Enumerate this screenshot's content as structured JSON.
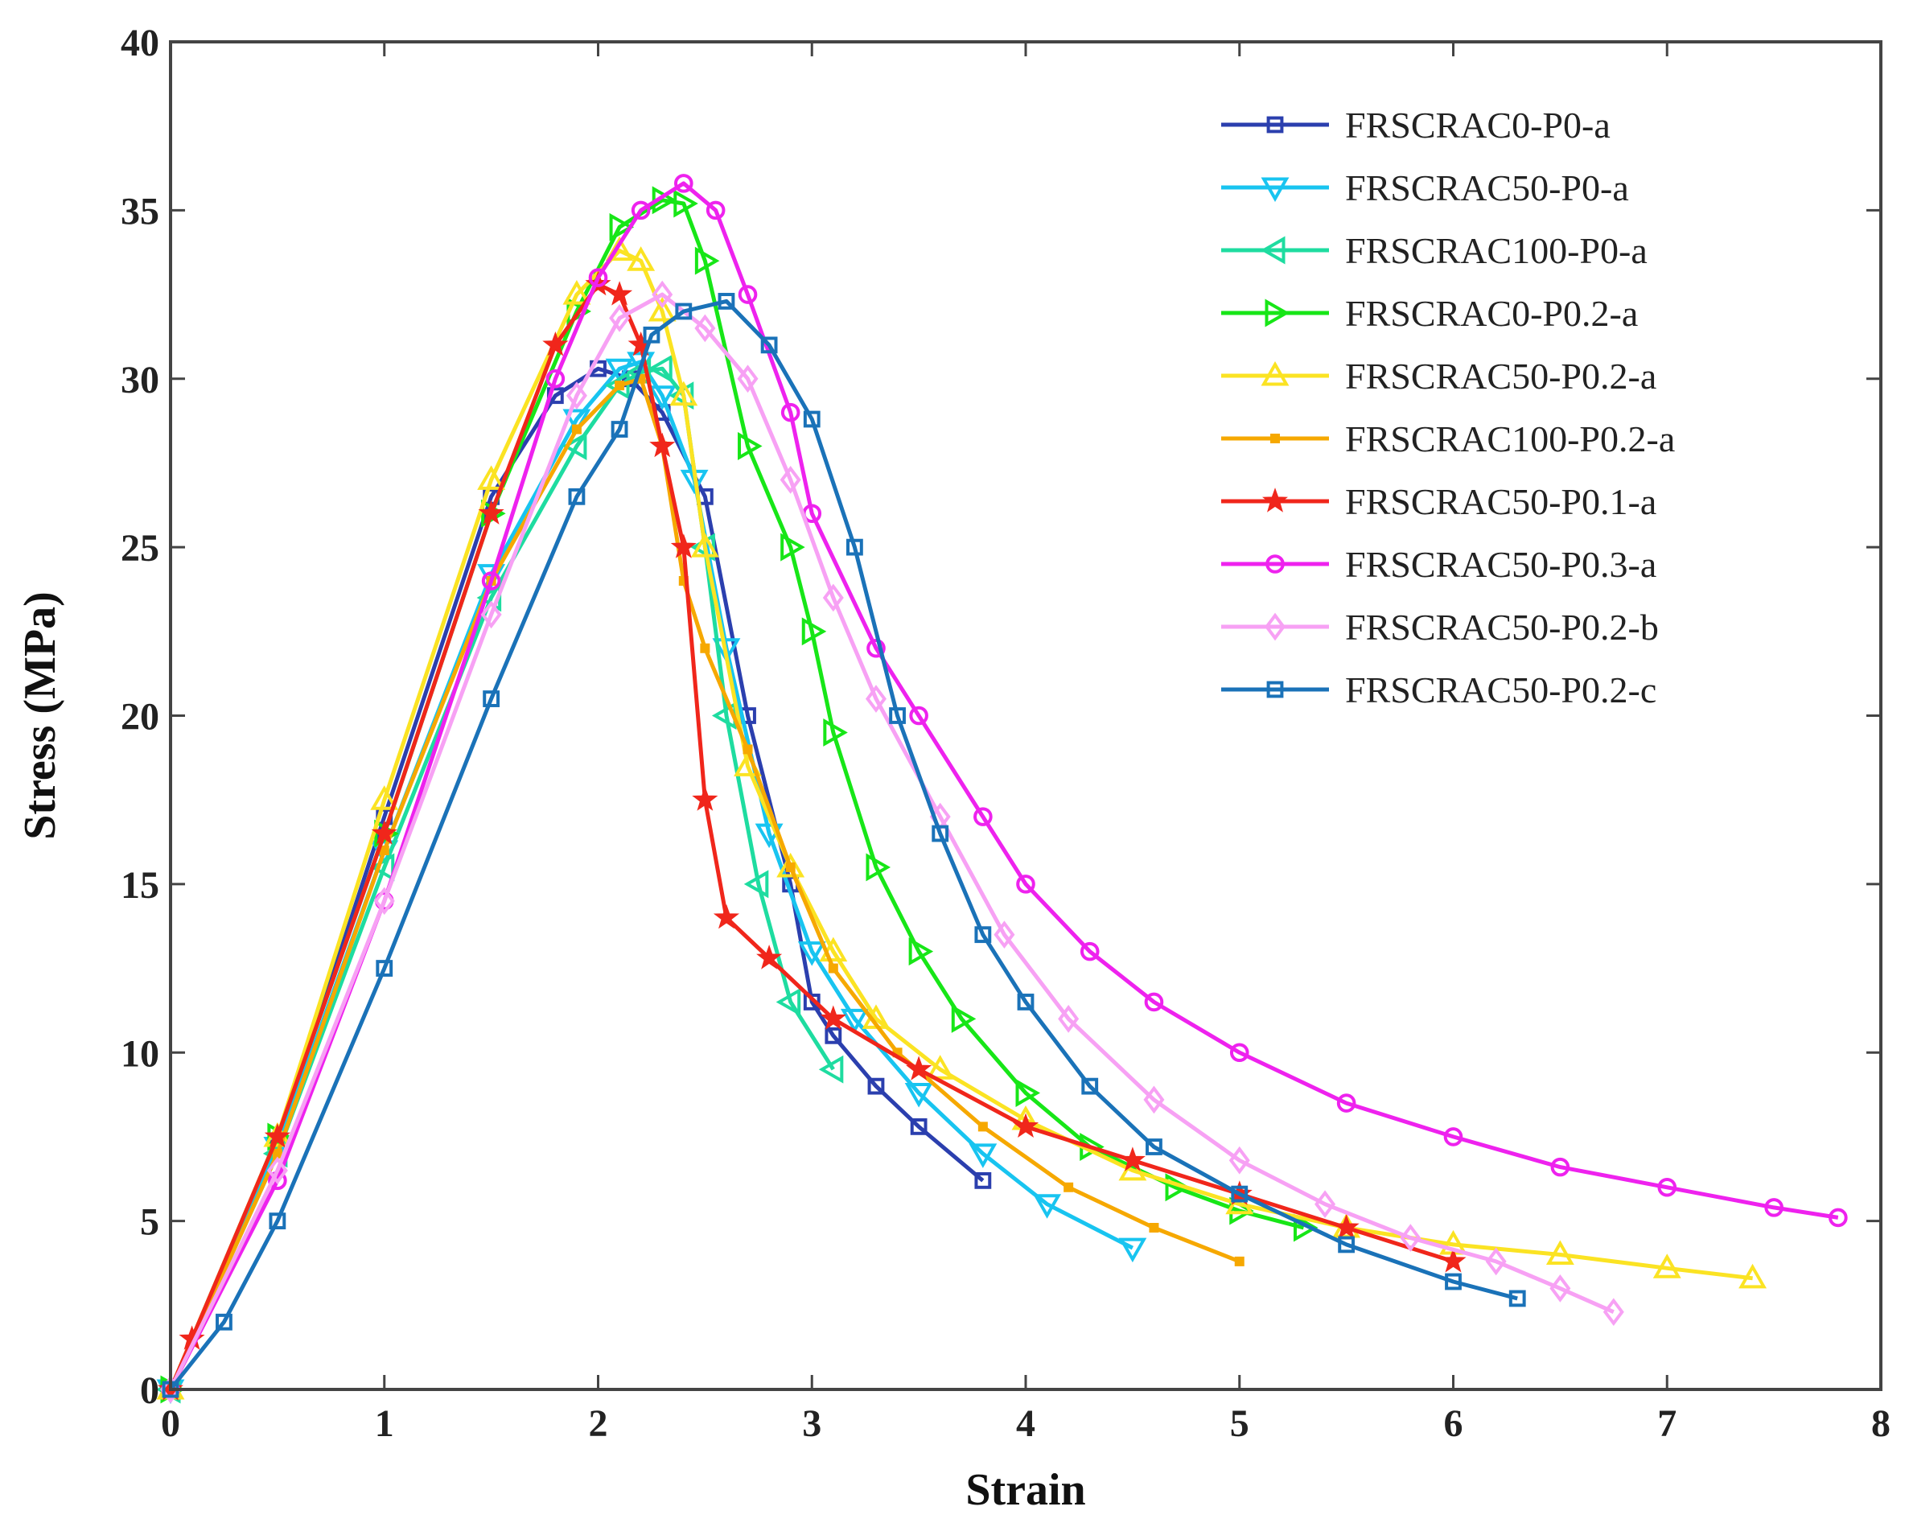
{
  "chart_data": {
    "type": "line",
    "title": "",
    "xlabel": "Strain",
    "ylabel": "Stress (MPa)",
    "xlim": [
      0,
      8
    ],
    "ylim": [
      0,
      40
    ],
    "xticks": [
      "0",
      "1",
      "2",
      "3",
      "4",
      "5",
      "6",
      "7",
      "8"
    ],
    "yticks": [
      "0",
      "5",
      "10",
      "15",
      "20",
      "25",
      "30",
      "35",
      "40"
    ],
    "grid": false,
    "legend_position": "top-right",
    "series": [
      {
        "name": "FRSCRAC0-P0-a",
        "color": "#2b3fae",
        "marker": "square",
        "x": [
          0,
          0.5,
          1.0,
          1.5,
          1.8,
          2.0,
          2.15,
          2.3,
          2.5,
          2.7,
          2.9,
          3.0,
          3.1,
          3.3,
          3.5,
          3.8
        ],
        "y": [
          0,
          7.3,
          17.0,
          26.5,
          29.5,
          30.3,
          30.0,
          29.0,
          26.5,
          20.0,
          15.0,
          11.5,
          10.5,
          9.0,
          7.8,
          6.2
        ]
      },
      {
        "name": "FRSCRAC50-P0-a",
        "color": "#18c4f0",
        "marker": "triangle-down",
        "x": [
          0,
          0.5,
          1.0,
          1.5,
          1.9,
          2.1,
          2.2,
          2.3,
          2.45,
          2.6,
          2.8,
          3.0,
          3.2,
          3.5,
          3.8,
          4.1,
          4.5
        ],
        "y": [
          0,
          7.2,
          16.0,
          24.2,
          28.8,
          30.3,
          30.5,
          29.5,
          27.0,
          22.0,
          16.5,
          13.0,
          11.0,
          8.8,
          7.0,
          5.5,
          4.2
        ]
      },
      {
        "name": "FRSCRAC100-P0-a",
        "color": "#1edca0",
        "marker": "triangle-left",
        "x": [
          0,
          0.5,
          1.0,
          1.5,
          1.9,
          2.1,
          2.2,
          2.3,
          2.4,
          2.5,
          2.6,
          2.75,
          2.9,
          3.1
        ],
        "y": [
          0,
          7.0,
          15.5,
          23.5,
          28.0,
          29.8,
          30.2,
          30.3,
          29.5,
          25.0,
          20.0,
          15.0,
          11.5,
          9.5
        ]
      },
      {
        "name": "FRSCRAC0-P0.2-a",
        "color": "#17e617",
        "marker": "triangle-right",
        "x": [
          0,
          0.5,
          1.0,
          1.5,
          1.9,
          2.1,
          2.3,
          2.4,
          2.5,
          2.7,
          2.9,
          3.0,
          3.1,
          3.3,
          3.5,
          3.7,
          4.0,
          4.3,
          4.7,
          5.0,
          5.3
        ],
        "y": [
          0,
          7.5,
          16.5,
          26.0,
          32.0,
          34.5,
          35.3,
          35.2,
          33.5,
          28.0,
          25.0,
          22.5,
          19.5,
          15.5,
          13.0,
          11.0,
          8.8,
          7.2,
          6.0,
          5.3,
          4.8
        ]
      },
      {
        "name": "FRSCRAC50-P0.2-a",
        "color": "#fbe323",
        "marker": "triangle-up",
        "x": [
          0,
          0.5,
          1.0,
          1.5,
          1.9,
          2.1,
          2.2,
          2.3,
          2.4,
          2.5,
          2.7,
          2.9,
          3.1,
          3.3,
          3.6,
          4.0,
          4.5,
          5.0,
          5.5,
          6.0,
          6.5,
          7.0,
          7.4
        ],
        "y": [
          0,
          7.5,
          17.5,
          27.0,
          32.5,
          33.8,
          33.5,
          32.0,
          29.5,
          25.0,
          18.5,
          15.5,
          13.0,
          11.0,
          9.5,
          8.0,
          6.5,
          5.5,
          4.8,
          4.3,
          4.0,
          3.6,
          3.3
        ]
      },
      {
        "name": "FRSCRAC100-P0.2-a",
        "color": "#f6a800",
        "marker": "small-square",
        "x": [
          0,
          0.5,
          1.0,
          1.5,
          1.9,
          2.1,
          2.2,
          2.3,
          2.4,
          2.5,
          2.7,
          2.9,
          3.1,
          3.4,
          3.8,
          4.2,
          4.6,
          5.0
        ],
        "y": [
          0,
          7.0,
          16.0,
          24.0,
          28.5,
          29.8,
          30.0,
          28.0,
          24.0,
          22.0,
          19.0,
          15.5,
          12.5,
          10.0,
          7.8,
          6.0,
          4.8,
          3.8
        ]
      },
      {
        "name": "FRSCRAC50-P0.1-a",
        "color": "#f0261b",
        "marker": "star",
        "x": [
          0,
          0.1,
          0.5,
          1.0,
          1.5,
          1.8,
          2.0,
          2.1,
          2.2,
          2.3,
          2.4,
          2.5,
          2.6,
          2.8,
          3.1,
          3.5,
          4.0,
          4.5,
          5.0,
          5.5,
          6.0
        ],
        "y": [
          0,
          1.5,
          7.5,
          16.5,
          26.0,
          31.0,
          32.8,
          32.5,
          31.0,
          28.0,
          25.0,
          17.5,
          14.0,
          12.8,
          11.0,
          9.5,
          7.8,
          6.8,
          5.8,
          4.8,
          3.8
        ]
      },
      {
        "name": "FRSCRAC50-P0.3-a",
        "color": "#ee22ee",
        "marker": "circle",
        "x": [
          0,
          0.5,
          1.0,
          1.5,
          1.8,
          2.0,
          2.2,
          2.4,
          2.55,
          2.7,
          2.9,
          3.0,
          3.3,
          3.5,
          3.8,
          4.0,
          4.3,
          4.6,
          5.0,
          5.5,
          6.0,
          6.5,
          7.0,
          7.5,
          7.8
        ],
        "y": [
          0,
          6.2,
          14.5,
          24.0,
          30.0,
          33.0,
          35.0,
          35.8,
          35.0,
          32.5,
          29.0,
          26.0,
          22.0,
          20.0,
          17.0,
          15.0,
          13.0,
          11.5,
          10.0,
          8.5,
          7.5,
          6.6,
          6.0,
          5.4,
          5.1
        ]
      },
      {
        "name": "FRSCRAC50-P0.2-b",
        "color": "#f7a1f4",
        "marker": "diamond",
        "x": [
          0,
          0.5,
          1.0,
          1.5,
          1.9,
          2.1,
          2.3,
          2.5,
          2.7,
          2.9,
          3.1,
          3.3,
          3.6,
          3.9,
          4.2,
          4.6,
          5.0,
          5.4,
          5.8,
          6.2,
          6.5,
          6.75
        ],
        "y": [
          0,
          6.5,
          14.5,
          23.0,
          29.5,
          31.8,
          32.5,
          31.5,
          30.0,
          27.0,
          23.5,
          20.5,
          17.0,
          13.5,
          11.0,
          8.6,
          6.8,
          5.5,
          4.5,
          3.8,
          3.0,
          2.3
        ]
      },
      {
        "name": "FRSCRAC50-P0.2-c",
        "color": "#1a72b8",
        "marker": "square",
        "x": [
          0,
          0.25,
          0.5,
          1.0,
          1.5,
          1.9,
          2.1,
          2.25,
          2.4,
          2.6,
          2.8,
          3.0,
          3.2,
          3.4,
          3.6,
          3.8,
          4.0,
          4.3,
          4.6,
          5.0,
          5.5,
          6.0,
          6.3
        ],
        "y": [
          0,
          2.0,
          5.0,
          12.5,
          20.5,
          26.5,
          28.5,
          31.3,
          32.0,
          32.3,
          31.0,
          28.8,
          25.0,
          20.0,
          16.5,
          13.5,
          11.5,
          9.0,
          7.2,
          5.8,
          4.3,
          3.2,
          2.7
        ]
      }
    ]
  }
}
